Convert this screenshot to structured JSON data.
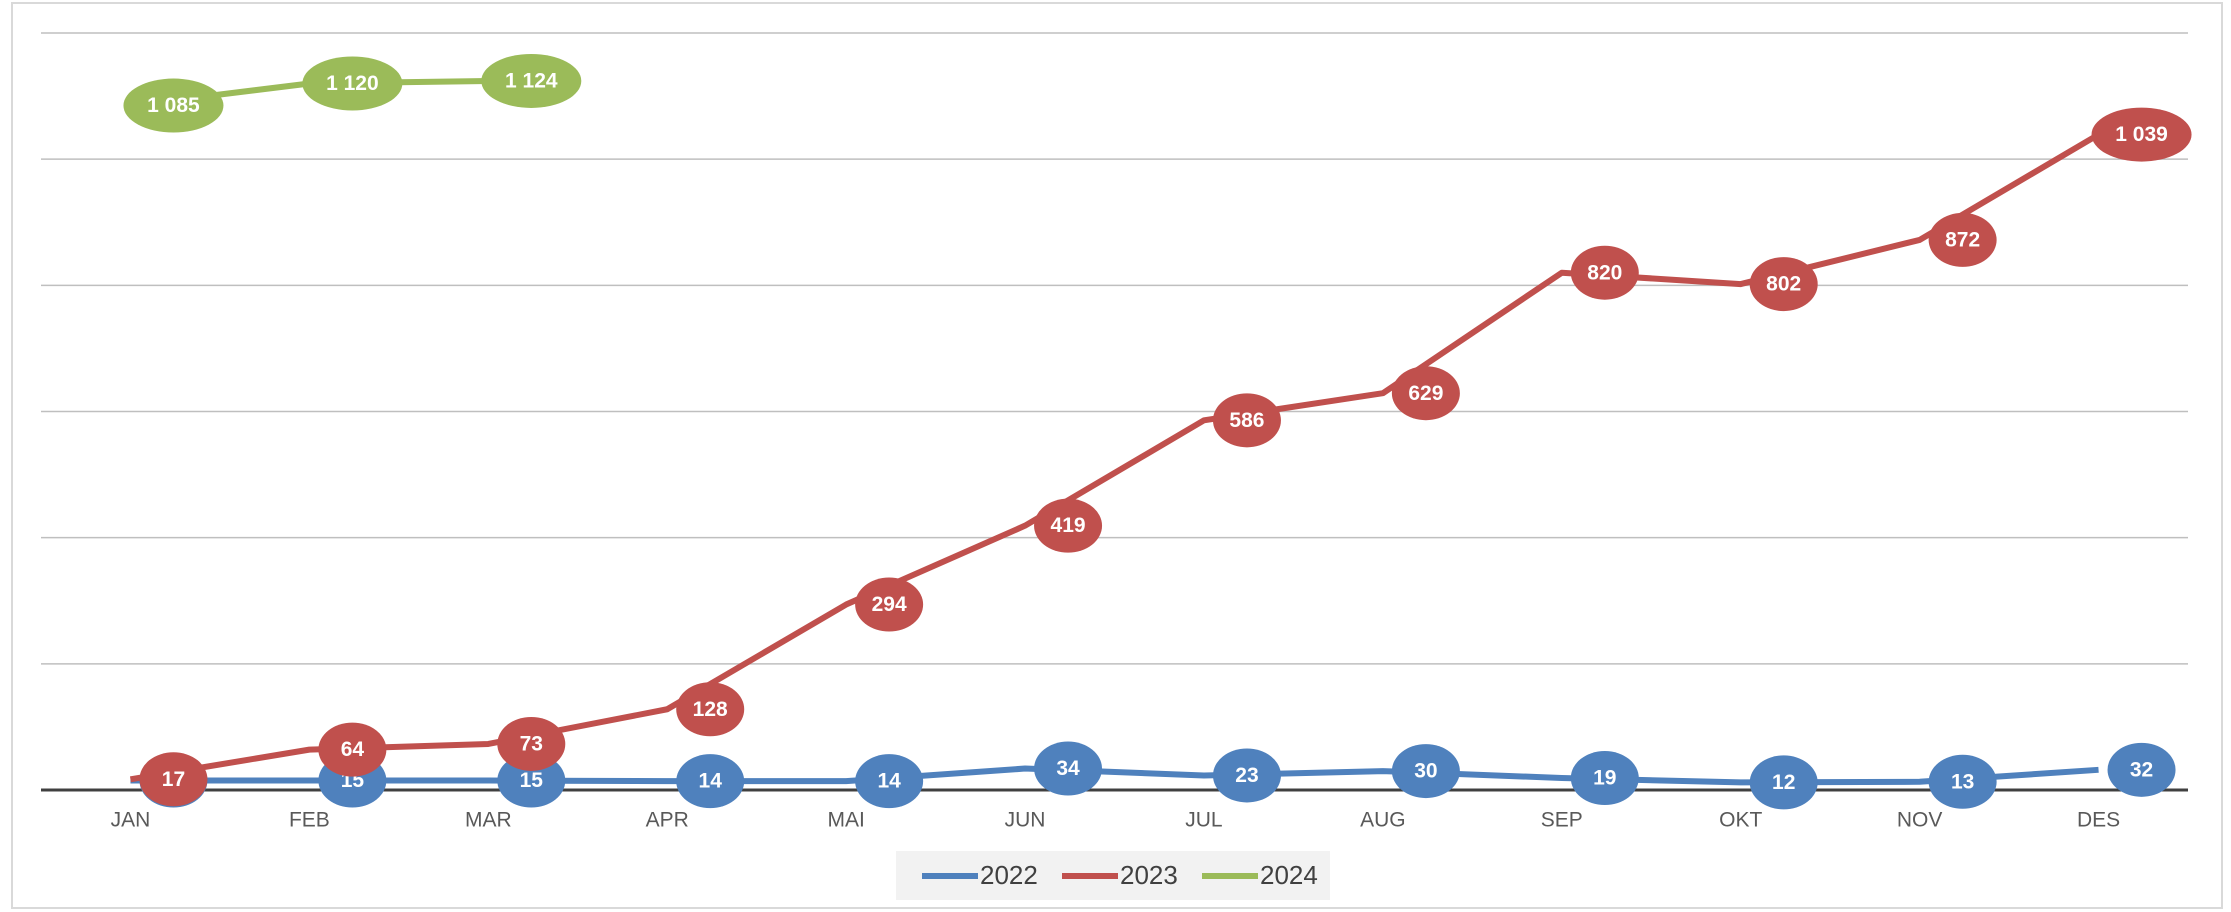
{
  "chart_data": {
    "type": "line",
    "categories": [
      "JAN",
      "FEB",
      "MAR",
      "APR",
      "MAI",
      "JUN",
      "JUL",
      "AUG",
      "SEP",
      "OKT",
      "NOV",
      "DES"
    ],
    "series": [
      {
        "name": "2022",
        "color": "#4f81bd",
        "values": [
          15,
          15,
          15,
          14,
          14,
          34,
          23,
          30,
          19,
          12,
          13,
          32
        ]
      },
      {
        "name": "2023",
        "color": "#c0504d",
        "values": [
          17,
          64,
          73,
          128,
          294,
          419,
          586,
          629,
          820,
          802,
          872,
          1039
        ],
        "value_labels": [
          "17",
          "64",
          "73",
          "128",
          "294",
          "419",
          "586",
          "629",
          "820",
          "802",
          "872",
          "1 039"
        ]
      },
      {
        "name": "2024",
        "color": "#9bbb59",
        "values": [
          1085,
          1120,
          1124,
          null,
          null,
          null,
          null,
          null,
          null,
          null,
          null,
          null
        ],
        "value_labels": [
          "1 085",
          "1 120",
          "1 124",
          null,
          null,
          null,
          null,
          null,
          null,
          null,
          null,
          null
        ]
      }
    ],
    "ylim": [
      0,
      1200
    ],
    "yticks": [
      0,
      200,
      400,
      600,
      800,
      1000,
      1200
    ],
    "grid": true,
    "legend": "bottom"
  }
}
